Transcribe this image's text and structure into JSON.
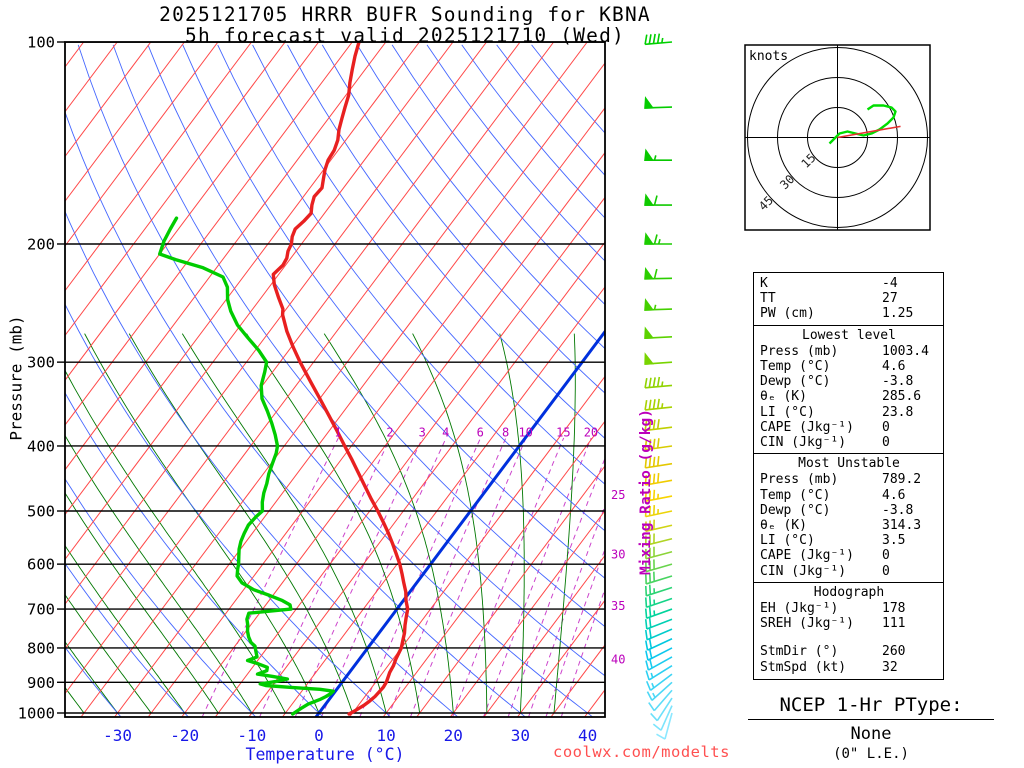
{
  "title": {
    "line1": "2025121705 HRRR BUFR Sounding for KBNA",
    "line2": "5h forecast valid 2025121710 (Wed)"
  },
  "watermark": "coolwx.com/modelts",
  "axes": {
    "pressure_label": "Pressure (mb)",
    "temp_label": "Temperature (°C)",
    "mixing_label": "Mixing Ratio (g/kg)",
    "pressure_ticks": [
      100,
      200,
      300,
      400,
      500,
      600,
      700,
      800,
      900,
      1000
    ],
    "temp_ticks": [
      -30,
      -20,
      -10,
      0,
      10,
      20,
      30,
      40
    ]
  },
  "hodograph": {
    "unit_label": "knots",
    "ring_labels": [
      15,
      30,
      45
    ],
    "rings_kt": [
      15,
      30,
      45
    ],
    "trace_uv": [
      [
        -4,
        -3
      ],
      [
        1,
        2
      ],
      [
        5,
        3
      ],
      [
        9,
        2
      ],
      [
        13,
        1
      ],
      [
        17,
        2
      ],
      [
        21,
        4
      ],
      [
        25,
        7
      ],
      [
        28,
        10
      ],
      [
        29,
        13
      ],
      [
        27,
        15
      ],
      [
        23,
        16
      ],
      [
        18,
        16
      ],
      [
        15,
        14
      ]
    ],
    "storm_dir": 260,
    "storm_spd": 32
  },
  "stats": {
    "summary": [
      [
        "K",
        "-4"
      ],
      [
        "TT",
        "27"
      ],
      [
        "PW (cm)",
        "1.25"
      ]
    ],
    "sections": [
      {
        "title": "Lowest level",
        "rows": [
          [
            "Press (mb)",
            "1003.4"
          ],
          [
            "Temp (°C)",
            "4.6"
          ],
          [
            "Dewp (°C)",
            "-3.8"
          ],
          [
            "θₑ (K)",
            "285.6"
          ],
          [
            "LI (°C)",
            "23.8"
          ],
          [
            "CAPE (Jkg⁻¹)",
            "0"
          ],
          [
            "CIN (Jkg⁻¹)",
            "0"
          ]
        ]
      },
      {
        "title": "Most Unstable",
        "rows": [
          [
            "Press (mb)",
            "789.2"
          ],
          [
            "Temp (°C)",
            "4.6"
          ],
          [
            "Dewp (°C)",
            "-3.8"
          ],
          [
            "θₑ (K)",
            "314.3"
          ],
          [
            "LI (°C)",
            "3.5"
          ],
          [
            "CAPE (Jkg⁻¹)",
            "0"
          ],
          [
            "CIN (Jkg⁻¹)",
            "0"
          ]
        ]
      },
      {
        "title": "Hodograph",
        "rows": [
          [
            "EH (Jkg⁻¹)",
            "178"
          ],
          [
            "SREH (Jkg⁻¹)",
            "111"
          ],
          [
            "",
            ""
          ],
          [
            "StmDir (°)",
            "260"
          ],
          [
            "StmSpd (kt)",
            "32"
          ]
        ]
      }
    ]
  },
  "ptype": {
    "title": "NCEP 1-Hr PType:",
    "value": "None",
    "le": "(0\" L.E.)"
  },
  "chart_data": {
    "type": "skewt-log-p",
    "pressure_range_mb": [
      100,
      1013
    ],
    "temp_axis_range_c": [
      -40,
      45
    ],
    "isotherm_step_c": 5,
    "highlighted_isotherm_c": 0,
    "dry_adiabats_c": [
      -40,
      -30,
      -20,
      -10,
      0,
      10,
      20,
      30,
      40,
      50,
      60,
      70,
      80,
      90,
      100,
      110,
      120,
      130,
      140,
      150,
      160,
      170
    ],
    "moist_adiabats_c": [
      -40,
      -35,
      -30,
      -25,
      -20,
      -15,
      -10,
      -5,
      0,
      5,
      10,
      15,
      20,
      25,
      30,
      35
    ],
    "mixing_ratios_gkg": [
      1,
      2,
      3,
      4,
      6,
      8,
      10,
      15,
      20,
      25,
      30,
      35,
      40
    ],
    "mixing_label_row_gkg": [
      1,
      2,
      3,
      4,
      6,
      8,
      10,
      15,
      20
    ],
    "mixing_label_row_pressure": 390,
    "mixing_right_labels": [
      [
        25,
        473
      ],
      [
        30,
        580
      ],
      [
        35,
        693
      ],
      [
        40,
        832
      ]
    ],
    "temperature_profile": [
      [
        1003.4,
        4.6
      ],
      [
        990,
        5.2
      ],
      [
        975,
        5.8
      ],
      [
        960,
        6.2
      ],
      [
        945,
        6.5
      ],
      [
        930,
        6.6
      ],
      [
        915,
        6.7
      ],
      [
        900,
        6.6
      ],
      [
        885,
        6.3
      ],
      [
        870,
        6.0
      ],
      [
        850,
        5.8
      ],
      [
        830,
        5.4
      ],
      [
        800,
        5.0
      ],
      [
        780,
        4.4
      ],
      [
        760,
        3.8
      ],
      [
        740,
        3.0
      ],
      [
        720,
        2.3
      ],
      [
        700,
        1.6
      ],
      [
        680,
        0.4
      ],
      [
        660,
        -0.6
      ],
      [
        640,
        -1.9
      ],
      [
        620,
        -3.2
      ],
      [
        600,
        -4.6
      ],
      [
        580,
        -6.2
      ],
      [
        560,
        -7.9
      ],
      [
        540,
        -9.7
      ],
      [
        520,
        -11.7
      ],
      [
        500,
        -13.8
      ],
      [
        480,
        -16.1
      ],
      [
        460,
        -18.4
      ],
      [
        440,
        -20.8
      ],
      [
        420,
        -23.3
      ],
      [
        400,
        -26.0
      ],
      [
        380,
        -28.8
      ],
      [
        360,
        -31.8
      ],
      [
        340,
        -35.0
      ],
      [
        320,
        -38.4
      ],
      [
        300,
        -42.0
      ],
      [
        285,
        -44.7
      ],
      [
        270,
        -47.4
      ],
      [
        255,
        -49.9
      ],
      [
        250,
        -50.5
      ],
      [
        240,
        -52.5
      ],
      [
        230,
        -54.5
      ],
      [
        222,
        -55.8
      ],
      [
        215,
        -55.4
      ],
      [
        210,
        -55.6
      ],
      [
        205,
        -56.2
      ],
      [
        200,
        -56.5
      ],
      [
        195,
        -57.2
      ],
      [
        190,
        -57.6
      ],
      [
        185,
        -57.2
      ],
      [
        180,
        -57.0
      ],
      [
        175,
        -57.8
      ],
      [
        170,
        -58.4
      ],
      [
        165,
        -58.2
      ],
      [
        160,
        -59.0
      ],
      [
        155,
        -59.8
      ],
      [
        150,
        -60.4
      ],
      [
        145,
        -60.6
      ],
      [
        140,
        -61.2
      ],
      [
        135,
        -62.2
      ],
      [
        130,
        -63.0
      ],
      [
        125,
        -63.8
      ],
      [
        120,
        -64.6
      ],
      [
        115,
        -65.8
      ],
      [
        110,
        -66.9
      ],
      [
        105,
        -68.0
      ],
      [
        100,
        -69.0
      ]
    ],
    "dewpoint_profile": [
      [
        1003.4,
        -3.8
      ],
      [
        985,
        -3.2
      ],
      [
        970,
        -2.6
      ],
      [
        955,
        -1.4
      ],
      [
        945,
        -0.8
      ],
      [
        935,
        -0.4
      ],
      [
        928,
        -0.3
      ],
      [
        922,
        -2.5
      ],
      [
        916,
        -7.0
      ],
      [
        910,
        -11.0
      ],
      [
        905,
        -12.0
      ],
      [
        898,
        -10.0
      ],
      [
        890,
        -8.5
      ],
      [
        882,
        -11.0
      ],
      [
        875,
        -13.5
      ],
      [
        865,
        -12.5
      ],
      [
        855,
        -12.8
      ],
      [
        845,
        -14.5
      ],
      [
        835,
        -16.5
      ],
      [
        825,
        -15.5
      ],
      [
        815,
        -16.0
      ],
      [
        805,
        -16.5
      ],
      [
        795,
        -17.0
      ],
      [
        785,
        -18.0
      ],
      [
        770,
        -19.0
      ],
      [
        755,
        -19.8
      ],
      [
        740,
        -20.4
      ],
      [
        725,
        -21.2
      ],
      [
        710,
        -21.6
      ],
      [
        700,
        -15.8
      ],
      [
        690,
        -16.4
      ],
      [
        680,
        -18.0
      ],
      [
        668,
        -20.5
      ],
      [
        655,
        -23.5
      ],
      [
        640,
        -26.0
      ],
      [
        625,
        -27.5
      ],
      [
        610,
        -28.2
      ],
      [
        600,
        -28.6
      ],
      [
        585,
        -29.4
      ],
      [
        570,
        -30.2
      ],
      [
        555,
        -30.8
      ],
      [
        540,
        -31.2
      ],
      [
        525,
        -31.5
      ],
      [
        510,
        -31.3
      ],
      [
        500,
        -31.0
      ],
      [
        485,
        -32.0
      ],
      [
        470,
        -32.8
      ],
      [
        455,
        -33.4
      ],
      [
        440,
        -34.2
      ],
      [
        425,
        -34.8
      ],
      [
        410,
        -35.4
      ],
      [
        400,
        -36.0
      ],
      [
        385,
        -37.6
      ],
      [
        370,
        -39.4
      ],
      [
        355,
        -41.4
      ],
      [
        340,
        -43.6
      ],
      [
        325,
        -45.2
      ],
      [
        310,
        -46.2
      ],
      [
        300,
        -47.0
      ],
      [
        288,
        -49.5
      ],
      [
        276,
        -52.5
      ],
      [
        264,
        -55.5
      ],
      [
        252,
        -58.0
      ],
      [
        242,
        -59.8
      ],
      [
        232,
        -61.2
      ],
      [
        224,
        -63.0
      ],
      [
        217,
        -67.0
      ],
      [
        211,
        -72.0
      ],
      [
        207,
        -75.0
      ],
      [
        198,
        -75.8
      ],
      [
        190,
        -76.2
      ],
      [
        183,
        -76.5
      ]
    ],
    "wind_barbs": [
      [
        1000,
        10,
        195,
        "#8ce8ff"
      ],
      [
        975,
        10,
        204,
        "#7ce4fc"
      ],
      [
        950,
        10,
        213,
        "#6ce0fa"
      ],
      [
        925,
        12,
        221,
        "#5cdcf8"
      ],
      [
        900,
        15,
        228,
        "#4cd8f6"
      ],
      [
        875,
        15,
        233,
        "#3cd4f4"
      ],
      [
        850,
        15,
        238,
        "#2cd0f2"
      ],
      [
        825,
        18,
        241,
        "#1cccf0"
      ],
      [
        800,
        20,
        243,
        "#0cc8ee"
      ],
      [
        775,
        20,
        245,
        "#00c8e0"
      ],
      [
        750,
        20,
        247,
        "#00cccc"
      ],
      [
        725,
        22,
        249,
        "#00d0b4"
      ],
      [
        700,
        25,
        250,
        "#00d49c"
      ],
      [
        675,
        25,
        251,
        "#14d488"
      ],
      [
        650,
        25,
        252,
        "#2cd474"
      ],
      [
        625,
        28,
        253,
        "#48d460"
      ],
      [
        600,
        30,
        254,
        "#68d44c"
      ],
      [
        575,
        30,
        255,
        "#8cd438"
      ],
      [
        550,
        30,
        256,
        "#b0d424"
      ],
      [
        525,
        32,
        257,
        "#d0d414"
      ],
      [
        500,
        35,
        258,
        "#ecd408"
      ],
      [
        475,
        35,
        259,
        "#f8d400"
      ],
      [
        450,
        38,
        260,
        "#f0cc00"
      ],
      [
        425,
        40,
        261,
        "#e4c800"
      ],
      [
        400,
        40,
        262,
        "#d8cc00"
      ],
      [
        375,
        42,
        263,
        "#c0d000"
      ],
      [
        350,
        45,
        264,
        "#a8d200"
      ],
      [
        325,
        45,
        265,
        "#90d300"
      ],
      [
        300,
        48,
        266,
        "#78d400"
      ],
      [
        275,
        50,
        267,
        "#5cd200"
      ],
      [
        250,
        55,
        268,
        "#44d000"
      ],
      [
        225,
        60,
        269,
        "#2cce00"
      ],
      [
        200,
        65,
        270,
        "#1ccc00"
      ],
      [
        175,
        60,
        270,
        "#10ca00"
      ],
      [
        150,
        55,
        270,
        "#08c800"
      ],
      [
        125,
        50,
        268,
        "#04cc00"
      ],
      [
        100,
        45,
        265,
        "#00d000"
      ]
    ],
    "colors": {
      "isotherm": "#ff4848",
      "zero_isotherm": "#0030dd",
      "dry_adiabat": "#4466ff",
      "moist_adiabat": "#007700",
      "mixing_ratio": "#cc44cc",
      "temperature_curve": "#e82020",
      "dewpoint_curve": "#00cc00",
      "hodo_trace": "#00dd00",
      "storm_vector": "#e83030"
    }
  }
}
